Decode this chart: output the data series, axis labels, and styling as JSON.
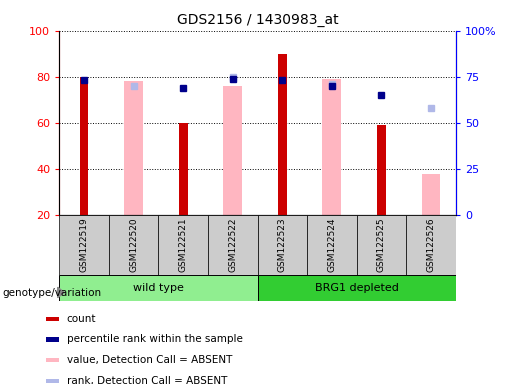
{
  "title": "GDS2156 / 1430983_at",
  "samples": [
    "GSM122519",
    "GSM122520",
    "GSM122521",
    "GSM122522",
    "GSM122523",
    "GSM122524",
    "GSM122525",
    "GSM122526"
  ],
  "count_values": [
    80,
    0,
    60,
    0,
    90,
    0,
    59,
    0
  ],
  "absent_value_bars": [
    0,
    78,
    0,
    76,
    0,
    79,
    0,
    38
  ],
  "percentile_rank_left": [
    73,
    0,
    0,
    74,
    73,
    0,
    0,
    0
  ],
  "percentile_rank_right": [
    73,
    0,
    69,
    74,
    73,
    70,
    65,
    0
  ],
  "absent_rank_right": [
    0,
    70,
    0,
    75,
    0,
    71,
    0,
    58
  ],
  "ylim_left": [
    20,
    100
  ],
  "ylim_right": [
    0,
    100
  ],
  "yticks_left": [
    20,
    40,
    60,
    80,
    100
  ],
  "yticks_right": [
    0,
    25,
    50,
    75,
    100
  ],
  "ytick_labels_right": [
    "0",
    "25",
    "50",
    "75",
    "100%"
  ],
  "colors": {
    "count": "#CC0000",
    "percentile_rank": "#00008B",
    "absent_value": "#FFB6C1",
    "absent_rank": "#B0B8E8",
    "group_wt": "#90EE90",
    "group_brg1": "#32CD32"
  },
  "legend_items": [
    {
      "label": "count",
      "color": "#CC0000"
    },
    {
      "label": "percentile rank within the sample",
      "color": "#00008B"
    },
    {
      "label": "value, Detection Call = ABSENT",
      "color": "#FFB6C1"
    },
    {
      "label": "rank, Detection Call = ABSENT",
      "color": "#B0B8E8"
    }
  ]
}
